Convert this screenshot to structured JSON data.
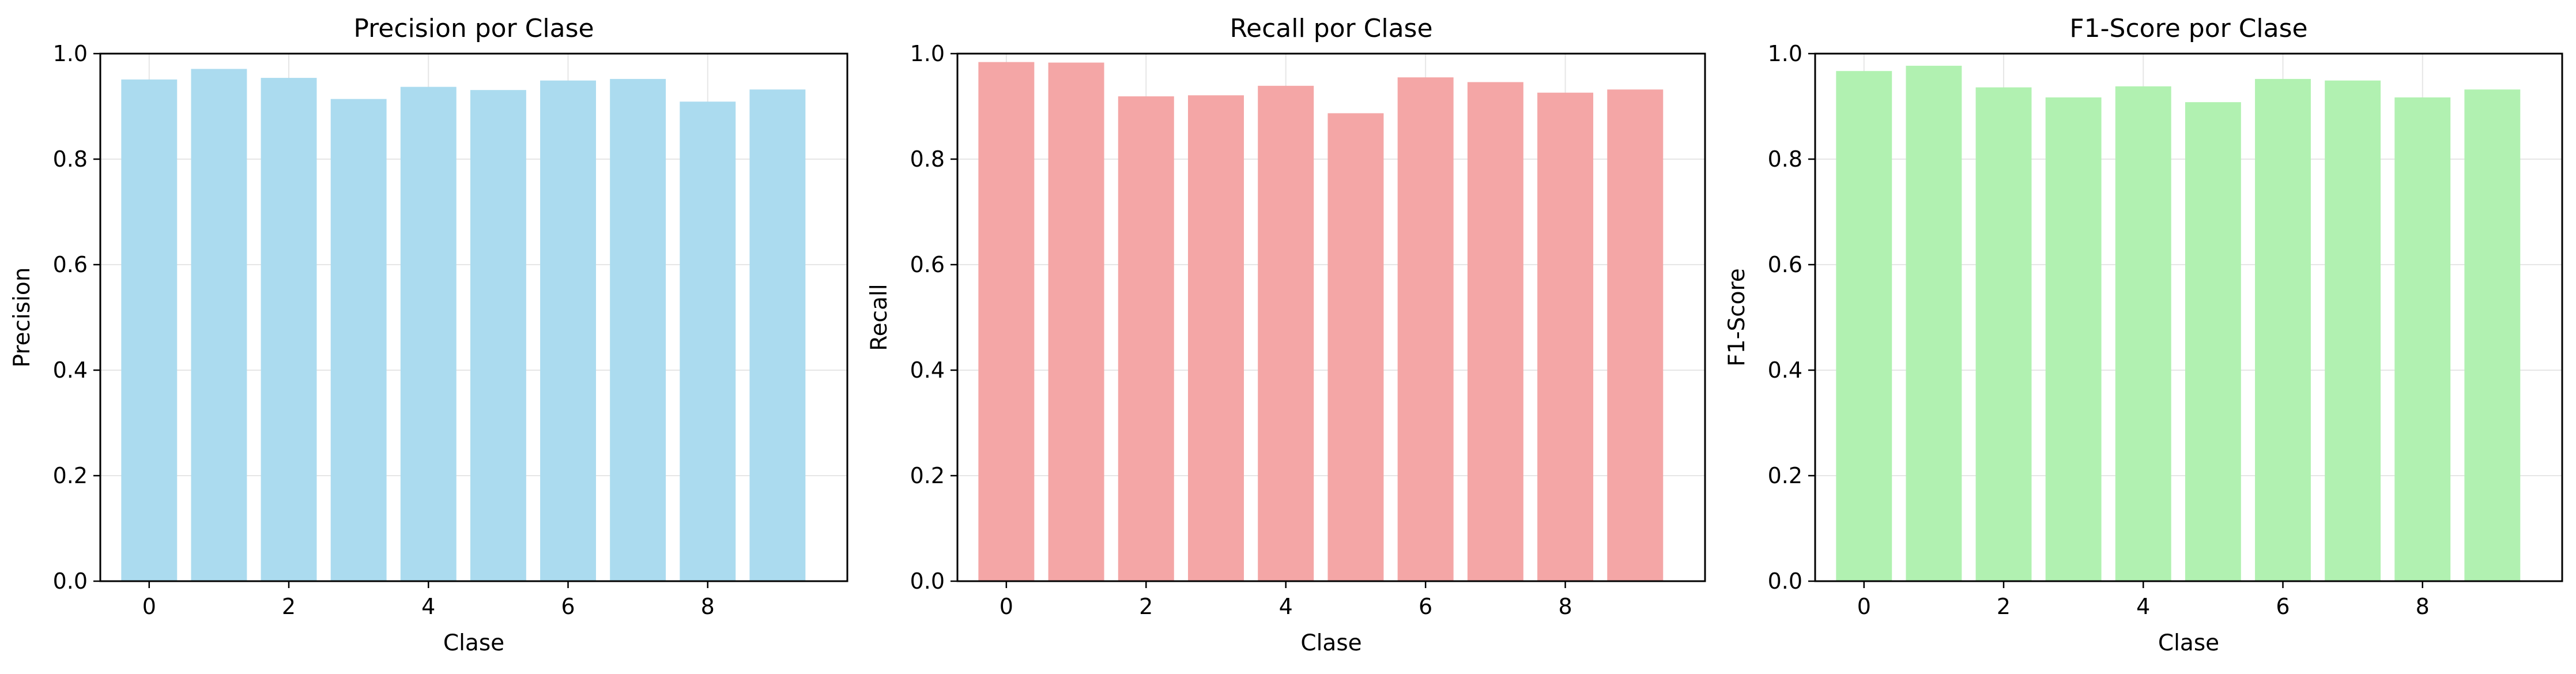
{
  "chart_data": [
    {
      "type": "bar",
      "title": "Precision por Clase",
      "xlabel": "Clase",
      "ylabel": "Precision",
      "categories": [
        0,
        1,
        2,
        3,
        4,
        5,
        6,
        7,
        8,
        9
      ],
      "values": [
        0.951,
        0.971,
        0.954,
        0.914,
        0.937,
        0.931,
        0.949,
        0.952,
        0.909,
        0.932
      ],
      "xticks": [
        0,
        2,
        4,
        6,
        8
      ],
      "ylim": [
        0,
        1
      ],
      "yticks": [
        "0.0",
        "0.2",
        "0.4",
        "0.6",
        "0.8",
        "1.0"
      ],
      "color": "#abdbef",
      "grid": true
    },
    {
      "type": "bar",
      "title": "Recall por Clase",
      "xlabel": "Clase",
      "ylabel": "Recall",
      "categories": [
        0,
        1,
        2,
        3,
        4,
        5,
        6,
        7,
        8,
        9
      ],
      "values": [
        0.984,
        0.983,
        0.919,
        0.921,
        0.939,
        0.887,
        0.955,
        0.946,
        0.926,
        0.932
      ],
      "xticks": [
        0,
        2,
        4,
        6,
        8
      ],
      "ylim": [
        0,
        1
      ],
      "yticks": [
        "0.0",
        "0.2",
        "0.4",
        "0.6",
        "0.8",
        "1.0"
      ],
      "color": "#f4a6a6",
      "grid": true
    },
    {
      "type": "bar",
      "title": "F1-Score por Clase",
      "xlabel": "Clase",
      "ylabel": "F1-Score",
      "categories": [
        0,
        1,
        2,
        3,
        4,
        5,
        6,
        7,
        8,
        9
      ],
      "values": [
        0.967,
        0.977,
        0.936,
        0.917,
        0.938,
        0.908,
        0.952,
        0.949,
        0.917,
        0.932
      ],
      "xticks": [
        0,
        2,
        4,
        6,
        8
      ],
      "ylim": [
        0,
        1
      ],
      "yticks": [
        "0.0",
        "0.2",
        "0.4",
        "0.6",
        "0.8",
        "1.0"
      ],
      "color": "#b1f1b1",
      "grid": true
    }
  ]
}
